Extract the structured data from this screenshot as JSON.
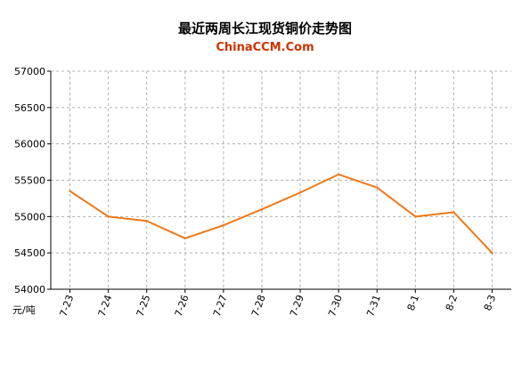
{
  "chart_data": {
    "type": "line",
    "title": "最近两周长江现货铜价走势图",
    "subtitle": "ChinaCCM.Com",
    "ylabel": "元/吨",
    "xlabel": "",
    "categories": [
      "7-23",
      "7-24",
      "7-25",
      "7-26",
      "7-27",
      "7-28",
      "7-29",
      "7-30",
      "7-31",
      "8-1",
      "8-2",
      "8-3"
    ],
    "series": [
      {
        "values": [
          55350,
          55000,
          54940,
          54700,
          54880,
          55100,
          55330,
          55580,
          55400,
          55000,
          55060,
          54500
        ]
      }
    ],
    "ylim": [
      54000,
      57000
    ],
    "yticks": [
      54000,
      54500,
      55000,
      55500,
      56000,
      56500,
      57000
    ],
    "grid": true,
    "line_color": "#F07818",
    "subtitle_color": "#CC3300"
  }
}
